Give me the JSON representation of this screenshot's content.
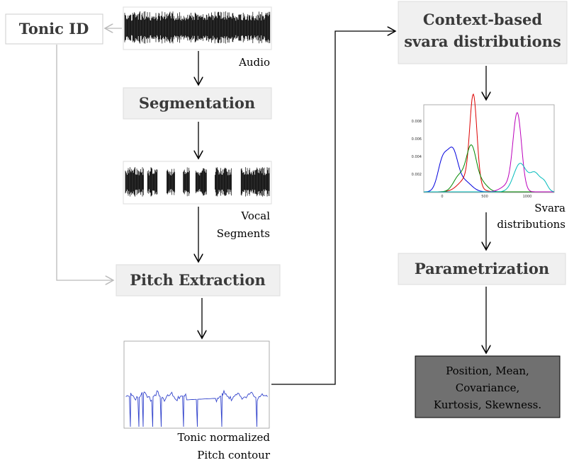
{
  "nodes": [
    {
      "label": "Tonic ID"
    },
    {
      "label": "Segmentation"
    },
    {
      "label": "Pitch Extraction"
    },
    {
      "lines": [
        "Context-based",
        "svara distributions"
      ]
    },
    {
      "label": "Parametrization"
    },
    {
      "lines": [
        "Position, Mean,",
        "Covariance,",
        "Kurtosis, Skewness."
      ]
    }
  ],
  "captions": {
    "audio": [
      "Audio"
    ],
    "vocal": [
      "Vocal",
      "Segments"
    ],
    "pitch": [
      "Tonic normalized",
      "Pitch contour"
    ],
    "svara": [
      "Svara",
      "distributions"
    ]
  },
  "svara_plot": {
    "yticks": [
      "0.008",
      "0.006",
      "0.004",
      "0.002"
    ],
    "xticks": [
      "0",
      "500",
      "1000"
    ]
  }
}
